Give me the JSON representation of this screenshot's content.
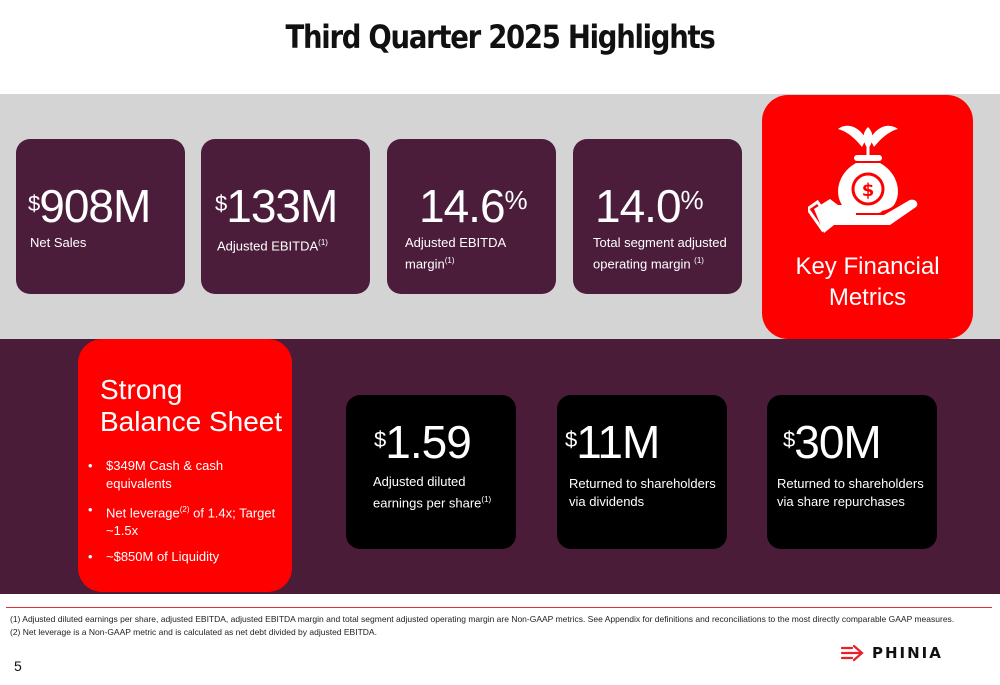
{
  "title": "Third Quarter 2025 Highlights",
  "colors": {
    "dark_card": "#4c1d3b",
    "accent_red": "#ff0000",
    "band_grey": "#d4d4d4",
    "band_plum": "#4a1c38"
  },
  "metrics": [
    {
      "prefix": "$",
      "value": "908M",
      "suffix": "",
      "label_lines": [
        "Net Sales"
      ],
      "note": ""
    },
    {
      "prefix": "$",
      "value": "133M",
      "suffix": "",
      "label_lines": [
        "Adjusted EBITDA"
      ],
      "note": "(1)"
    },
    {
      "prefix": "",
      "value": "14.6",
      "suffix": "%",
      "label_lines": [
        "Adjusted EBITDA",
        "margin"
      ],
      "note": "(1)"
    },
    {
      "prefix": "",
      "value": "14.0",
      "suffix": "%",
      "label_lines": [
        "Total segment adjusted",
        "operating margin "
      ],
      "note": "(1)"
    }
  ],
  "key_metrics": {
    "line1": "Key Financial",
    "line2": "Metrics",
    "icon": "money-bag-hand-icon"
  },
  "balance_sheet": {
    "title_line1": "Strong",
    "title_line2": "Balance Sheet",
    "item1": "$349M Cash & cash equivalents",
    "item2_pre": "Net leverage",
    "item2_note": "(2)",
    "item2_post": " of 1.4x; Target ~1.5x",
    "item3": "~$850M of Liquidity"
  },
  "shareholder_metrics": [
    {
      "prefix": "$",
      "value": "1.59",
      "label_lines": [
        "Adjusted diluted",
        "earnings per share"
      ],
      "note": "(1)"
    },
    {
      "prefix": "$",
      "value": "11M",
      "label_lines": [
        "Returned to shareholders",
        "via dividends"
      ],
      "note": ""
    },
    {
      "prefix": "$",
      "value": "30M",
      "label_lines": [
        "Returned to shareholders",
        "via share repurchases"
      ],
      "note": ""
    }
  ],
  "footnotes": [
    "(1)   Adjusted diluted earnings per share, adjusted EBITDA, adjusted EBITDA margin and total segment adjusted operating margin are Non-GAAP metrics. See Appendix for definitions and reconciliations to the most directly comparable GAAP measures.",
    "(2)   Net leverage is a Non-GAAP metric and is calculated as net debt divided by adjusted EBITDA."
  ],
  "page_number": "5",
  "logo_text": "PHINIA"
}
